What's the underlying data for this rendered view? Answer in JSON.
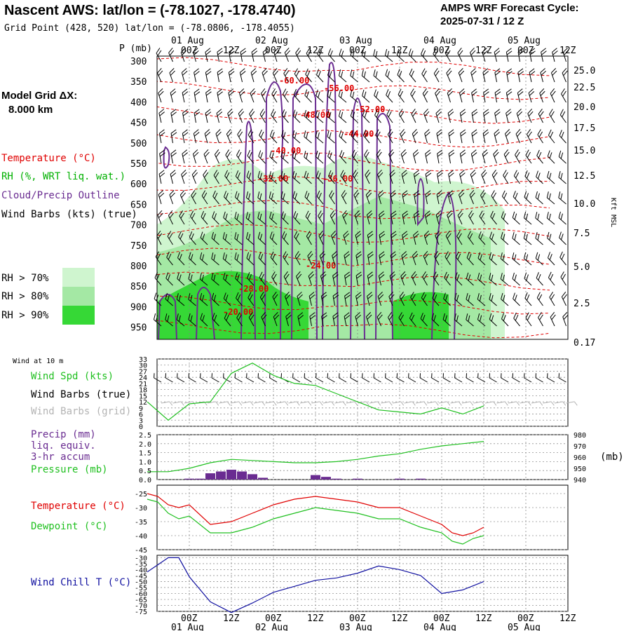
{
  "header": {
    "title": "Nascent AWS:  lat/lon = (-78.1027, -178.4740)",
    "subtitle": "Grid Point (428, 520) lat/lon = (-78.0806, -178.4055)",
    "cycle_line1": "AMPS WRF Forecast Cycle:",
    "cycle_line2": "2025-07-31 / 12  Z"
  },
  "time_axis": {
    "hours": [
      "00Z",
      "12Z",
      "00Z",
      "12Z",
      "00Z",
      "12Z",
      "00Z",
      "12Z",
      "00Z",
      "12Z"
    ],
    "dates": [
      "01 Aug",
      "02 Aug",
      "03 Aug",
      "04 Aug",
      "05 Aug"
    ]
  },
  "left_panel": {
    "p_label": "P (mb)",
    "grid_line1": "Model Grid ΔX:",
    "grid_line2": "8.000 km",
    "legend_temperature": "Temperature (°C)",
    "legend_rh": "RH (%, WRT liq. wat.)",
    "legend_cloud": "Cloud/Precip Outline",
    "legend_wind": "Wind Barbs (kts) (true)",
    "rh_70": "RH > 70%",
    "rh_80": "RH > 80%",
    "rh_90": "RH > 90%",
    "wind_10m": "Wind at 10 m",
    "wind_spd": "Wind Spd (kts)",
    "wind_barbs_true": "Wind Barbs (true)",
    "wind_barbs_grid": "Wind Barbs (grid)",
    "precip_line1": "Precip (mm)",
    "precip_line2": "liq. equiv.",
    "precip_line3": "3-hr accum",
    "pressure": "Pressure (mb)",
    "pressure_unit": "(mb)",
    "temperature": "Temperature (°C)",
    "dewpoint": "Dewpoint (°C)",
    "wind_chill": "Wind Chill T (°C)",
    "kft_label": "Kft MSL"
  },
  "colors": {
    "temperature": "#e00000",
    "rh": "#00b000",
    "cloud": "#6a2c91",
    "wind_spd": "#20c020",
    "wind_barbs_grid": "#b4b4b4",
    "wind_chill": "#1010a0",
    "rh70": "#cff5cf",
    "rh80": "#a4e8a4",
    "rh90": "#36d836"
  },
  "chart_data": [
    {
      "type": "heatmap",
      "name_panel": "cross-section",
      "pressure_levels": [
        300,
        350,
        400,
        450,
        500,
        550,
        600,
        650,
        700,
        750,
        800,
        850,
        900,
        950
      ],
      "height_kft": [
        "25.0",
        "22.5",
        "20.0",
        "17.5",
        "15.0",
        "12.5",
        "10.0",
        "7.5",
        "5.0",
        "2.5",
        "0.17"
      ],
      "temperature_labels": [
        "-60.00",
        "-56.00",
        "-48.00",
        "-52.00",
        "-44.00",
        "-40.00",
        "-36.00",
        "-32.00",
        "-24.00",
        "-28.00",
        "-20.00"
      ]
    },
    {
      "type": "line",
      "name_panel": "wind speed 10 m",
      "y_ticks": [
        0,
        3,
        6,
        9,
        12,
        15,
        18,
        21,
        24,
        27,
        30,
        33
      ],
      "ylim": [
        0,
        33
      ],
      "x_hours": [
        0,
        6,
        12,
        18,
        24,
        30,
        36,
        42,
        48,
        54,
        60,
        66,
        72,
        78,
        84,
        90,
        96
      ],
      "values": [
        12,
        3,
        11,
        12,
        26,
        31,
        25,
        21,
        20,
        16,
        12,
        8,
        7,
        6,
        9,
        6,
        10
      ]
    },
    {
      "type": "bar",
      "name_panel": "precip and pressure",
      "precip_ticks": [
        0.0,
        0.5,
        1.0,
        1.5,
        2.0,
        2.5
      ],
      "precip_ylim": [
        0,
        2.5
      ],
      "pressure_ticks": [
        940,
        950,
        960,
        970,
        980
      ],
      "pressure_ylim": [
        940,
        980
      ],
      "precip_x_hours": [
        12,
        15,
        18,
        21,
        24,
        27,
        30,
        33,
        48,
        51,
        54,
        60,
        72,
        78
      ],
      "precip_values": [
        0.05,
        0.05,
        0.35,
        0.45,
        0.55,
        0.45,
        0.3,
        0.1,
        0.25,
        0.15,
        0.05,
        0.05,
        0.05,
        0.05
      ],
      "pressure_x_hours": [
        0,
        6,
        12,
        18,
        24,
        30,
        36,
        42,
        48,
        54,
        60,
        66,
        72,
        78,
        84,
        90,
        96
      ],
      "pressure_values": [
        947,
        947,
        950,
        955,
        958,
        957,
        956,
        955,
        955,
        956,
        958,
        961,
        963,
        967,
        970,
        972,
        974
      ]
    },
    {
      "type": "line",
      "name_panel": "temperature and dewpoint",
      "y_ticks": [
        -45,
        -40,
        -35,
        -30,
        -25
      ],
      "ylim": [
        -45,
        -22
      ],
      "x_hours": [
        0,
        3,
        6,
        9,
        12,
        18,
        24,
        30,
        36,
        42,
        48,
        54,
        60,
        66,
        72,
        78,
        84,
        87,
        90,
        93,
        96
      ],
      "series": [
        {
          "name": "Temperature",
          "values": [
            -25,
            -26,
            -29,
            -30,
            -29,
            -36,
            -35,
            -32,
            -29,
            -27,
            -26,
            -27,
            -28,
            -30,
            -30,
            -33,
            -36,
            -39,
            -40,
            -39,
            -37
          ]
        },
        {
          "name": "Dewpoint",
          "values": [
            -27,
            -28,
            -32,
            -34,
            -33,
            -39,
            -39,
            -37,
            -34,
            -32,
            -30,
            -31,
            -32,
            -34,
            -34,
            -37,
            -39,
            -42,
            -43,
            -41,
            -40
          ]
        }
      ]
    },
    {
      "type": "line",
      "name_panel": "wind chill",
      "y_ticks": [
        -75,
        -70,
        -65,
        -60,
        -55,
        -50,
        -45,
        -40,
        -35,
        -30
      ],
      "ylim": [
        -75,
        -28
      ],
      "x_hours": [
        0,
        3,
        6,
        9,
        12,
        18,
        24,
        30,
        36,
        42,
        48,
        54,
        60,
        66,
        72,
        78,
        84,
        90,
        96
      ],
      "values": [
        -42,
        -36,
        -30,
        -30,
        -46,
        -67,
        -76,
        -68,
        -59,
        -54,
        -49,
        -47,
        -43,
        -37,
        -40,
        -45,
        -60,
        -57,
        -50
      ]
    }
  ]
}
